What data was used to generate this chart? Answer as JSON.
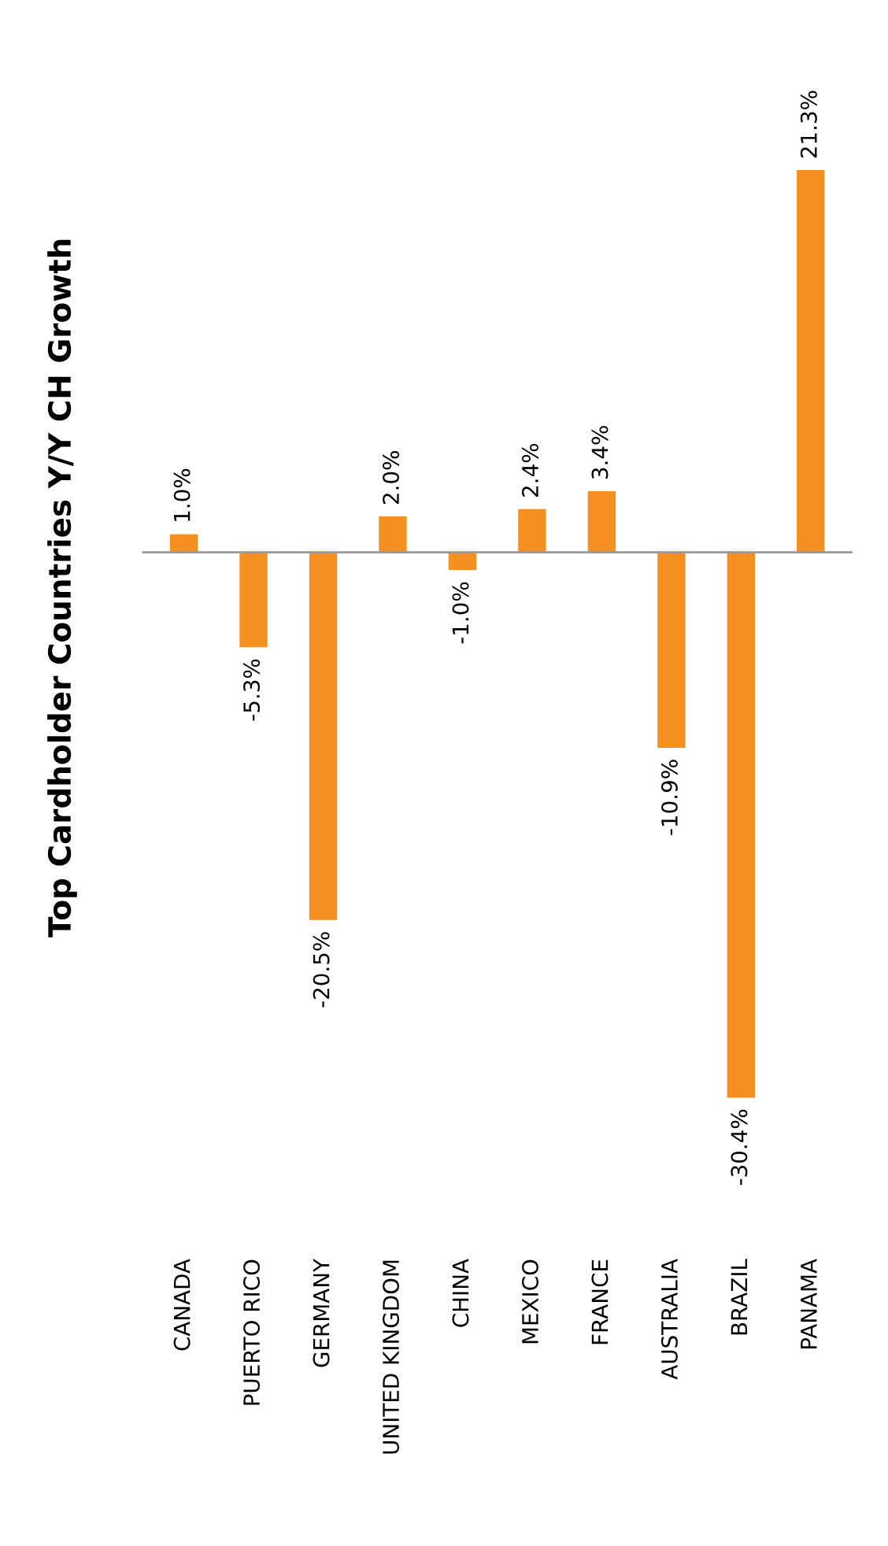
{
  "chart_data": {
    "type": "bar",
    "title": "Top Cardholder Countries Y/Y CH Growth",
    "categories": [
      "CANADA",
      "PUERTO RICO",
      "GERMANY",
      "UNITED KINGDOM",
      "CHINA",
      "MEXICO",
      "FRANCE",
      "AUSTRALIA",
      "BRAZIL",
      "PANAMA"
    ],
    "values": [
      1.0,
      -5.3,
      -20.5,
      2.0,
      -1.0,
      2.4,
      3.4,
      -10.9,
      -30.4,
      21.3
    ],
    "value_labels": [
      "1.0%",
      "-5.3%",
      "-20.5%",
      "2.0%",
      "-1.0%",
      "2.4%",
      "3.4%",
      "-10.9%",
      "-30.4%",
      "21.3%"
    ],
    "color": "#f39020",
    "grid": false,
    "legend": false
  }
}
